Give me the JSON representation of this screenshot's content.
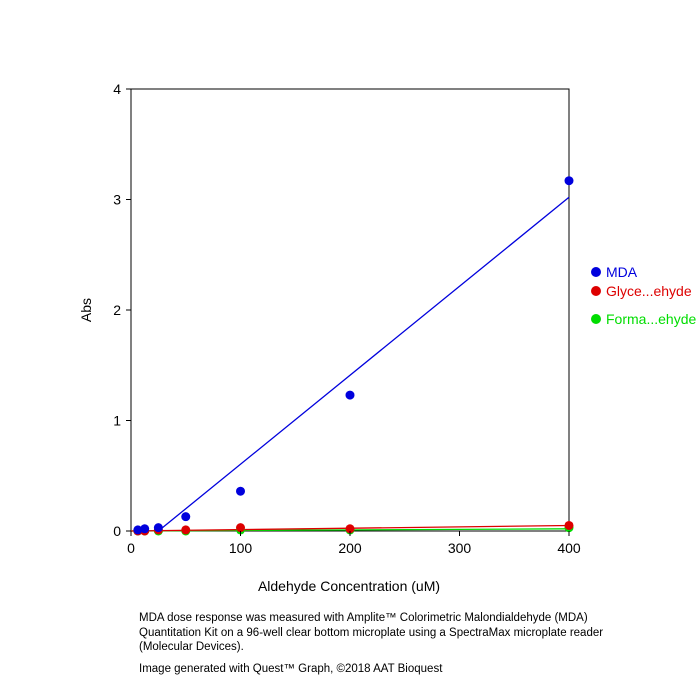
{
  "chart_data": {
    "type": "scatter",
    "xlabel": "Aldehyde Concentration (uM)",
    "ylabel": "Abs",
    "xlim": [
      0,
      400
    ],
    "ylim": [
      0,
      4
    ],
    "x_ticks": [
      0,
      100,
      200,
      300,
      400
    ],
    "y_ticks": [
      0,
      1,
      2,
      3,
      4
    ],
    "grid": false,
    "legend_position": "right",
    "series": [
      {
        "name": "MDA",
        "color": "#0000dd",
        "points": [
          [
            6.25,
            0.01
          ],
          [
            12.5,
            0.02
          ],
          [
            25,
            0.03
          ],
          [
            50,
            0.13
          ],
          [
            100,
            0.36
          ],
          [
            200,
            1.23
          ],
          [
            400,
            3.17
          ]
        ],
        "fit": [
          [
            25,
            0.0
          ],
          [
            400,
            3.02
          ]
        ]
      },
      {
        "name": "Glyce...ehyde",
        "color": "#dd0000",
        "points": [
          [
            6.25,
            0.0
          ],
          [
            12.5,
            0.0
          ],
          [
            25,
            0.01
          ],
          [
            50,
            0.01
          ],
          [
            100,
            0.03
          ],
          [
            200,
            0.02
          ],
          [
            400,
            0.05
          ]
        ],
        "fit": [
          [
            0,
            0.0
          ],
          [
            400,
            0.05
          ]
        ]
      },
      {
        "name": "Forma...ehyde",
        "color": "#00dd00",
        "points": [
          [
            6.25,
            0.0
          ],
          [
            12.5,
            0.0
          ],
          [
            25,
            0.0
          ],
          [
            50,
            0.0
          ],
          [
            100,
            0.01
          ],
          [
            200,
            0.01
          ],
          [
            400,
            0.03
          ]
        ],
        "fit": [
          [
            0,
            0.0
          ],
          [
            400,
            0.02
          ]
        ]
      }
    ]
  },
  "caption": {
    "description": "MDA dose response was measured with Amplite™ Colorimetric Malondialdehyde (MDA) Quantitation Kit on a 96-well clear bottom microplate using a SpectraMax microplate reader (Molecular Devices).",
    "credit": "Image generated with Quest™ Graph, ©2018 AAT Bioquest"
  }
}
